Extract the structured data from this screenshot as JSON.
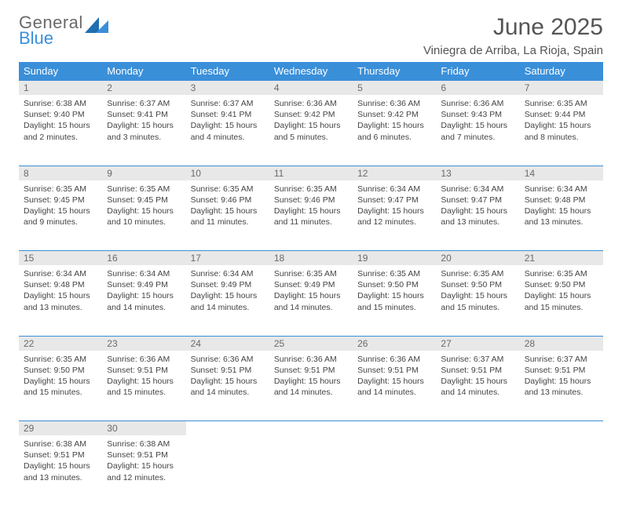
{
  "logo": {
    "text1": "General",
    "text2": "Blue"
  },
  "title": "June 2025",
  "location": "Viniegra de Arriba, La Rioja, Spain",
  "colors": {
    "header_bg": "#3a8fd9",
    "header_fg": "#ffffff",
    "daynum_bg": "#e8e8e8",
    "daynum_fg": "#6a6a6a",
    "rule": "#3a8fd9",
    "text": "#444444",
    "logo_gray": "#6a6a6a",
    "logo_blue": "#3a8fd9"
  },
  "weekdays": [
    "Sunday",
    "Monday",
    "Tuesday",
    "Wednesday",
    "Thursday",
    "Friday",
    "Saturday"
  ],
  "labels": {
    "sunrise": "Sunrise:",
    "sunset": "Sunset:",
    "daylight": "Daylight:"
  },
  "weeks": [
    [
      {
        "n": "1",
        "sr": "6:38 AM",
        "ss": "9:40 PM",
        "dl": "15 hours and 2 minutes."
      },
      {
        "n": "2",
        "sr": "6:37 AM",
        "ss": "9:41 PM",
        "dl": "15 hours and 3 minutes."
      },
      {
        "n": "3",
        "sr": "6:37 AM",
        "ss": "9:41 PM",
        "dl": "15 hours and 4 minutes."
      },
      {
        "n": "4",
        "sr": "6:36 AM",
        "ss": "9:42 PM",
        "dl": "15 hours and 5 minutes."
      },
      {
        "n": "5",
        "sr": "6:36 AM",
        "ss": "9:42 PM",
        "dl": "15 hours and 6 minutes."
      },
      {
        "n": "6",
        "sr": "6:36 AM",
        "ss": "9:43 PM",
        "dl": "15 hours and 7 minutes."
      },
      {
        "n": "7",
        "sr": "6:35 AM",
        "ss": "9:44 PM",
        "dl": "15 hours and 8 minutes."
      }
    ],
    [
      {
        "n": "8",
        "sr": "6:35 AM",
        "ss": "9:45 PM",
        "dl": "15 hours and 9 minutes."
      },
      {
        "n": "9",
        "sr": "6:35 AM",
        "ss": "9:45 PM",
        "dl": "15 hours and 10 minutes."
      },
      {
        "n": "10",
        "sr": "6:35 AM",
        "ss": "9:46 PM",
        "dl": "15 hours and 11 minutes."
      },
      {
        "n": "11",
        "sr": "6:35 AM",
        "ss": "9:46 PM",
        "dl": "15 hours and 11 minutes."
      },
      {
        "n": "12",
        "sr": "6:34 AM",
        "ss": "9:47 PM",
        "dl": "15 hours and 12 minutes."
      },
      {
        "n": "13",
        "sr": "6:34 AM",
        "ss": "9:47 PM",
        "dl": "15 hours and 13 minutes."
      },
      {
        "n": "14",
        "sr": "6:34 AM",
        "ss": "9:48 PM",
        "dl": "15 hours and 13 minutes."
      }
    ],
    [
      {
        "n": "15",
        "sr": "6:34 AM",
        "ss": "9:48 PM",
        "dl": "15 hours and 13 minutes."
      },
      {
        "n": "16",
        "sr": "6:34 AM",
        "ss": "9:49 PM",
        "dl": "15 hours and 14 minutes."
      },
      {
        "n": "17",
        "sr": "6:34 AM",
        "ss": "9:49 PM",
        "dl": "15 hours and 14 minutes."
      },
      {
        "n": "18",
        "sr": "6:35 AM",
        "ss": "9:49 PM",
        "dl": "15 hours and 14 minutes."
      },
      {
        "n": "19",
        "sr": "6:35 AM",
        "ss": "9:50 PM",
        "dl": "15 hours and 15 minutes."
      },
      {
        "n": "20",
        "sr": "6:35 AM",
        "ss": "9:50 PM",
        "dl": "15 hours and 15 minutes."
      },
      {
        "n": "21",
        "sr": "6:35 AM",
        "ss": "9:50 PM",
        "dl": "15 hours and 15 minutes."
      }
    ],
    [
      {
        "n": "22",
        "sr": "6:35 AM",
        "ss": "9:50 PM",
        "dl": "15 hours and 15 minutes."
      },
      {
        "n": "23",
        "sr": "6:36 AM",
        "ss": "9:51 PM",
        "dl": "15 hours and 15 minutes."
      },
      {
        "n": "24",
        "sr": "6:36 AM",
        "ss": "9:51 PM",
        "dl": "15 hours and 14 minutes."
      },
      {
        "n": "25",
        "sr": "6:36 AM",
        "ss": "9:51 PM",
        "dl": "15 hours and 14 minutes."
      },
      {
        "n": "26",
        "sr": "6:36 AM",
        "ss": "9:51 PM",
        "dl": "15 hours and 14 minutes."
      },
      {
        "n": "27",
        "sr": "6:37 AM",
        "ss": "9:51 PM",
        "dl": "15 hours and 14 minutes."
      },
      {
        "n": "28",
        "sr": "6:37 AM",
        "ss": "9:51 PM",
        "dl": "15 hours and 13 minutes."
      }
    ],
    [
      {
        "n": "29",
        "sr": "6:38 AM",
        "ss": "9:51 PM",
        "dl": "15 hours and 13 minutes."
      },
      {
        "n": "30",
        "sr": "6:38 AM",
        "ss": "9:51 PM",
        "dl": "15 hours and 12 minutes."
      },
      null,
      null,
      null,
      null,
      null
    ]
  ]
}
